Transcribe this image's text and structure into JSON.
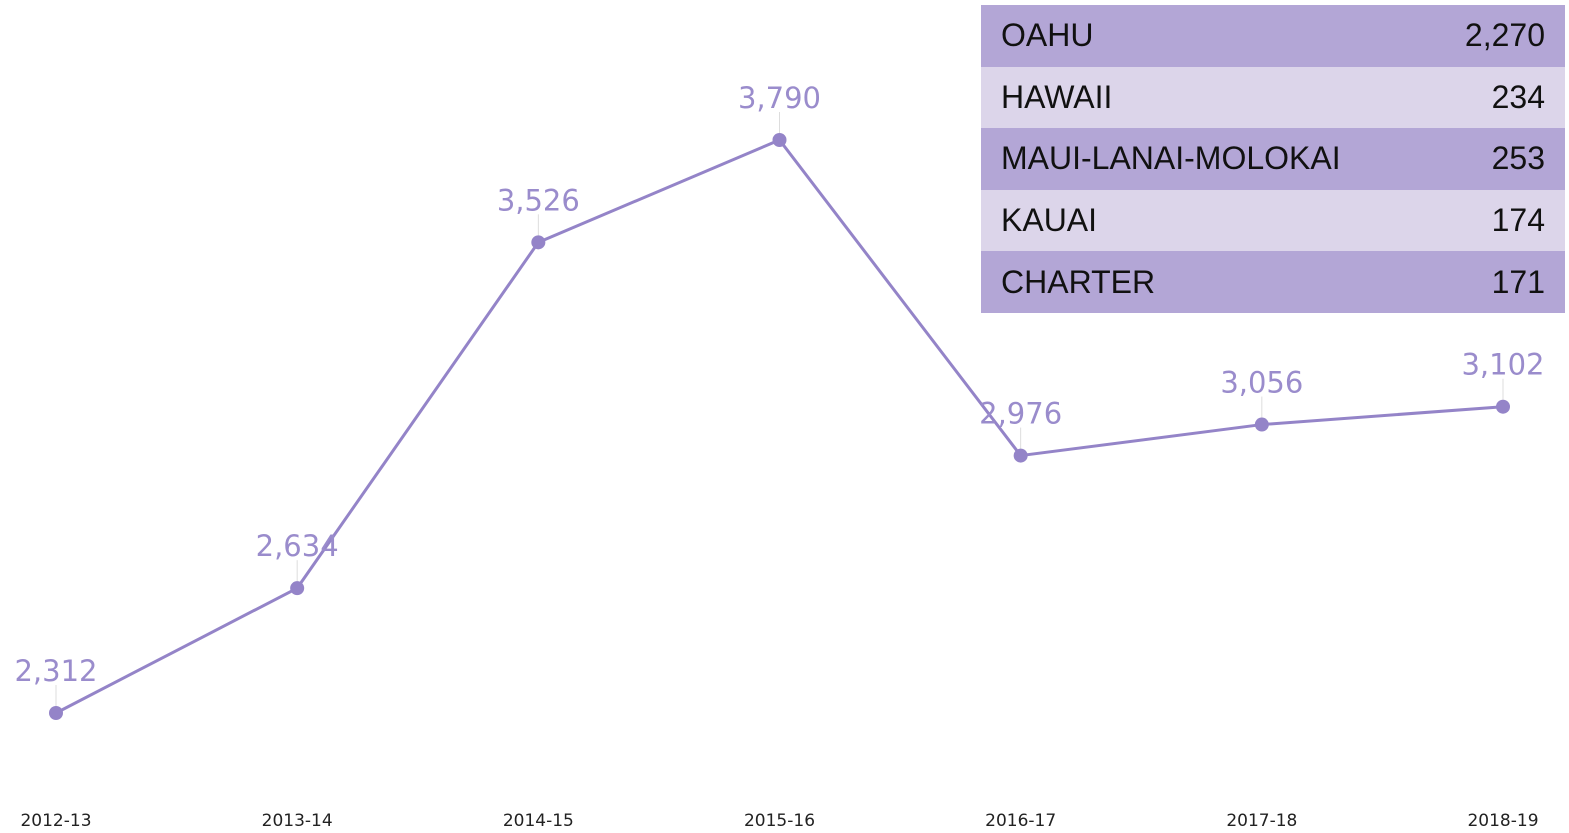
{
  "chart_data": {
    "type": "line",
    "categories": [
      "2012-13",
      "2013-14",
      "2014-15",
      "2015-16",
      "2016-17",
      "2017-18",
      "2018-19"
    ],
    "values": [
      2312,
      2634,
      3526,
      3790,
      2976,
      3056,
      3102
    ],
    "value_labels": [
      "2,312",
      "2,634",
      "3,526",
      "3,790",
      "2,976",
      "3,056",
      "3,102"
    ],
    "color": "#9484c8"
  },
  "table": {
    "rows": [
      [
        "OAHU",
        "2,270"
      ],
      [
        "HAWAII",
        "234"
      ],
      [
        "MAUI-LANAI-MOLOKAI",
        "253"
      ],
      [
        "KAUAI",
        "174"
      ],
      [
        "CHARTER",
        "171"
      ]
    ]
  }
}
